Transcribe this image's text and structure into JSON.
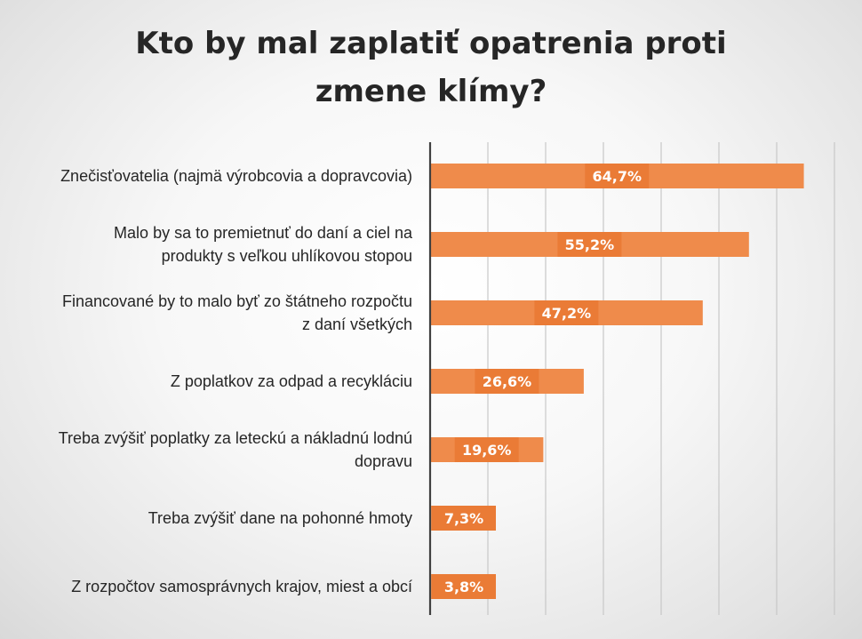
{
  "chart_data": {
    "type": "bar",
    "orientation": "horizontal",
    "title": "Kto by mal zaplatiť opatrenia proti\nzmene klímy?",
    "xlabel": "",
    "ylabel": "",
    "xlim": [
      0,
      70
    ],
    "grid": true,
    "legend": "none",
    "categories": [
      "Znečisťovatelia (najmä výrobcovia a dopravcovia)",
      "Malo by sa to premietnuť do daní a ciel na\nprodukty s veľkou uhlíkovou stopou",
      "Financované by to malo byť zo štátneho rozpočtu\nz daní všetkých",
      "Z poplatkov za odpad a recykláciu",
      "Treba zvýšiť poplatky za leteckú a nákladnú lodnú\ndopravu",
      "Treba zvýšiť dane na pohonné hmoty",
      "Z rozpočtov samosprávnych krajov, miest a obcí"
    ],
    "values": [
      64.7,
      55.2,
      47.2,
      26.6,
      19.6,
      7.3,
      3.8
    ],
    "data_labels": [
      "64,7%",
      "55,2%",
      "47,2%",
      "26,6%",
      "19,6%",
      "7,3%",
      "3,8%"
    ],
    "colors": {
      "bar": "#ef8b4b",
      "label_box": "#ea7b36",
      "label_text": "#ffffff",
      "axis": "#404040",
      "grid": "#c8c8c8"
    }
  }
}
